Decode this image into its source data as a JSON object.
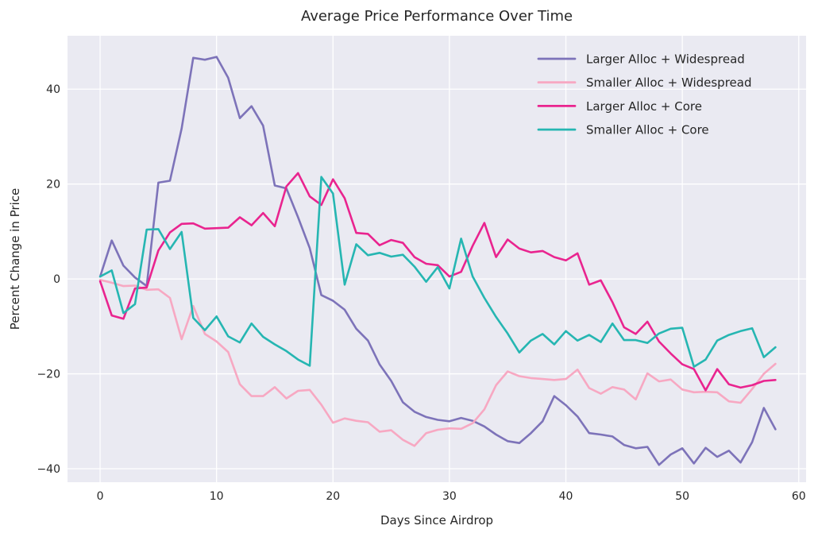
{
  "chart_data": {
    "type": "line",
    "title": "Average Price Performance Over Time",
    "xlabel": "Days Since Airdrop",
    "ylabel": "Percent Change in Price",
    "x": [
      0,
      1,
      2,
      3,
      4,
      5,
      6,
      7,
      8,
      9,
      10,
      11,
      12,
      13,
      14,
      15,
      16,
      17,
      18,
      19,
      20,
      21,
      22,
      23,
      24,
      25,
      26,
      27,
      28,
      29,
      30,
      31,
      32,
      33,
      34,
      35,
      36,
      37,
      38,
      39,
      40,
      41,
      42,
      43,
      44,
      45,
      46,
      47,
      48,
      49,
      50,
      51,
      52,
      53,
      54,
      55,
      56,
      57,
      58
    ],
    "xticks": [
      0,
      10,
      20,
      30,
      40,
      50,
      60
    ],
    "yticks": [
      -40,
      -20,
      0,
      20,
      40
    ],
    "ytick_labels": [
      "−40",
      "−20",
      "0",
      "20",
      "40"
    ],
    "xtick_labels": [
      "0",
      "10",
      "20",
      "30",
      "40",
      "50",
      "60"
    ],
    "xlim": [
      -2.8,
      60.63
    ],
    "ylim": [
      -42.85,
      51.26
    ],
    "grid": true,
    "legend_position": "upper right",
    "plot_bg": "#eaeaf2",
    "grid_color": "#ffffff",
    "text_color": "#262626",
    "series": [
      {
        "name": "Larger Alloc + Widespread",
        "color": "#7d73b9",
        "values": [
          0.5,
          8.1,
          2.8,
          0.3,
          -1.5,
          20.3,
          20.7,
          31.7,
          46.6,
          46.2,
          46.8,
          42.4,
          33.9,
          36.4,
          32.3,
          19.7,
          19.1,
          13.0,
          6.5,
          -3.4,
          -4.6,
          -6.5,
          -10.5,
          -13.0,
          -18.0,
          -21.5,
          -26.0,
          -28.0,
          -29.1,
          -29.7,
          -30.0,
          -29.3,
          -29.9,
          -31.1,
          -32.8,
          -34.2,
          -34.6,
          -32.5,
          -30.0,
          -24.7,
          -26.6,
          -29.0,
          -32.5,
          -32.8,
          -33.2,
          -35.0,
          -35.7,
          -35.4,
          -39.2,
          -37.0,
          -35.7,
          -38.9,
          -35.6,
          -37.5,
          -36.2,
          -38.7,
          -34.4,
          -27.2,
          -31.7
        ]
      },
      {
        "name": "Smaller Alloc + Widespread",
        "color": "#f7a8c2",
        "values": [
          -0.2,
          -0.8,
          -1.5,
          -1.4,
          -2.3,
          -2.2,
          -4.0,
          -12.7,
          -5.7,
          -11.6,
          -13.2,
          -15.4,
          -22.2,
          -24.7,
          -24.7,
          -22.8,
          -25.2,
          -23.6,
          -23.4,
          -26.5,
          -30.3,
          -29.4,
          -29.9,
          -30.2,
          -32.2,
          -31.9,
          -33.9,
          -35.2,
          -32.5,
          -31.8,
          -31.5,
          -31.6,
          -30.4,
          -27.5,
          -22.4,
          -19.5,
          -20.5,
          -20.9,
          -21.1,
          -21.3,
          -21.1,
          -19.1,
          -23.0,
          -24.2,
          -22.8,
          -23.3,
          -25.4,
          -19.9,
          -21.6,
          -21.2,
          -23.3,
          -23.9,
          -23.8,
          -23.9,
          -25.8,
          -26.1,
          -23.2,
          -20.0,
          -17.9
        ]
      },
      {
        "name": "Larger Alloc + Core",
        "color": "#e9248f",
        "values": [
          -0.5,
          -7.7,
          -8.4,
          -2.0,
          -1.8,
          6.0,
          9.8,
          11.6,
          11.7,
          10.6,
          10.7,
          10.8,
          13.0,
          11.3,
          13.9,
          11.1,
          19.5,
          22.3,
          17.4,
          15.6,
          21.0,
          17.0,
          9.7,
          9.5,
          7.1,
          8.2,
          7.6,
          4.6,
          3.2,
          2.9,
          0.5,
          1.5,
          7.0,
          11.8,
          4.6,
          8.3,
          6.4,
          5.6,
          5.9,
          4.6,
          3.9,
          5.4,
          -1.2,
          -0.3,
          -4.9,
          -10.2,
          -11.6,
          -9.0,
          -13.2,
          -15.7,
          -18.0,
          -19.0,
          -23.5,
          -19.0,
          -22.2,
          -22.9,
          -22.4,
          -21.5,
          -21.3
        ]
      },
      {
        "name": "Smaller Alloc + Core",
        "color": "#26b6b2",
        "values": [
          0.5,
          1.8,
          -7.2,
          -5.3,
          10.4,
          10.5,
          6.3,
          9.9,
          -8.2,
          -10.8,
          -7.9,
          -12.1,
          -13.4,
          -9.4,
          -12.2,
          -13.8,
          -15.2,
          -17.0,
          -18.3,
          21.5,
          18.0,
          -1.2,
          7.3,
          5.0,
          5.5,
          4.7,
          5.1,
          2.6,
          -0.6,
          2.5,
          -2.0,
          8.5,
          0.5,
          -4.0,
          -8.0,
          -11.5,
          -15.5,
          -13.0,
          -11.6,
          -13.8,
          -11.0,
          -13.0,
          -11.8,
          -13.3,
          -9.4,
          -12.9,
          -12.9,
          -13.5,
          -11.5,
          -10.5,
          -10.3,
          -18.5,
          -17.0,
          -13.0,
          -11.8,
          -11.0,
          -10.4,
          -16.5,
          -14.4
        ]
      }
    ]
  }
}
